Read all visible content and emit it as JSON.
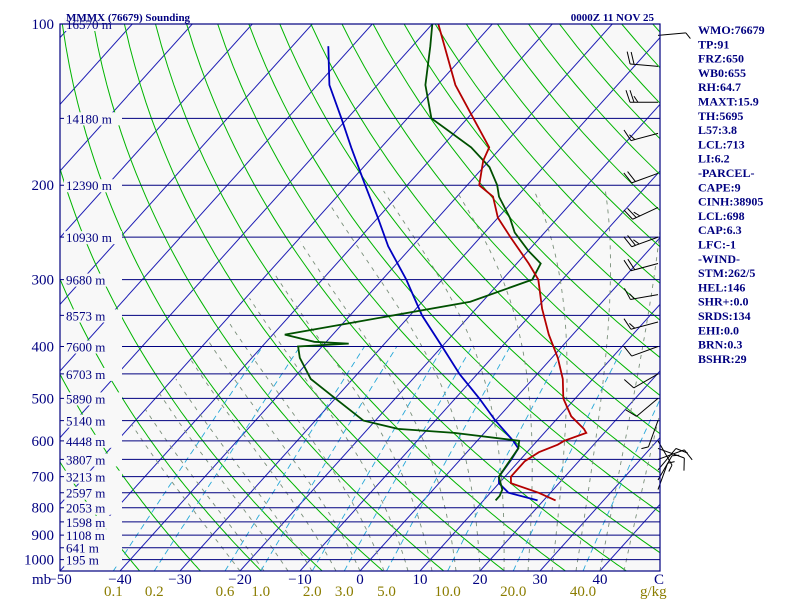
{
  "chart_data": {
    "type": "skew-t sounding",
    "title": "MMMX (76679) Sounding",
    "time": "0000Z 11 NOV 25",
    "x_axis_label": "mb",
    "temp_ticks": [
      -50,
      -40,
      -30,
      -20,
      -10,
      0,
      10,
      20,
      30,
      40
    ],
    "temp_tick_labels": [
      "−50",
      "−40",
      "−30",
      "−20",
      "−10",
      "0",
      "10",
      "20",
      "30",
      "40"
    ],
    "temp_unit": "C",
    "pressure_levels": [
      100,
      200,
      300,
      400,
      500,
      600,
      700,
      800,
      900,
      1000
    ],
    "mixing_ratio_labels": [
      "0.1",
      "0.2",
      "0.6",
      "1.0",
      "2.0",
      "3.0",
      "5.0",
      "10.0",
      "20.0",
      "40.0"
    ],
    "mixing_ratio_unit": "g/kg",
    "height_labels": [
      {
        "p": 100,
        "text": "16570 m"
      },
      {
        "p": 150,
        "text": "14180 m"
      },
      {
        "p": 200,
        "text": "12390 m"
      },
      {
        "p": 250,
        "text": "10930 m"
      },
      {
        "p": 300,
        "text": "9680 m"
      },
      {
        "p": 350,
        "text": "8573 m"
      },
      {
        "p": 400,
        "text": "7600 m"
      },
      {
        "p": 450,
        "text": "6703 m"
      },
      {
        "p": 500,
        "text": "5890 m"
      },
      {
        "p": 550,
        "text": "5140 m"
      },
      {
        "p": 600,
        "text": "4448 m"
      },
      {
        "p": 650,
        "text": "3807 m"
      },
      {
        "p": 700,
        "text": "3213 m"
      },
      {
        "p": 750,
        "text": "2597 m"
      },
      {
        "p": 800,
        "text": "2053 m"
      },
      {
        "p": 850,
        "text": "1598 m"
      },
      {
        "p": 900,
        "text": "1108 m"
      },
      {
        "p": 950,
        "text": "641 m"
      },
      {
        "p": 1000,
        "text": "195 m"
      }
    ],
    "temperature_profile": [
      [
        775,
        22
      ],
      [
        750,
        18
      ],
      [
        720,
        12
      ],
      [
        700,
        11
      ],
      [
        680,
        11
      ],
      [
        655,
        11
      ],
      [
        630,
        12
      ],
      [
        610,
        14
      ],
      [
        600,
        14.5
      ],
      [
        580,
        17
      ],
      [
        570,
        16
      ],
      [
        540,
        12
      ],
      [
        500,
        8
      ],
      [
        460,
        5
      ],
      [
        420,
        1
      ],
      [
        380,
        -4
      ],
      [
        340,
        -9
      ],
      [
        300,
        -14
      ],
      [
        280,
        -18
      ],
      [
        250,
        -25
      ],
      [
        230,
        -30
      ],
      [
        210,
        -34
      ],
      [
        200,
        -38
      ],
      [
        180,
        -41
      ],
      [
        170,
        -42
      ],
      [
        150,
        -49
      ],
      [
        130,
        -57
      ],
      [
        100,
        -69
      ]
    ],
    "dewpoint_profile": [
      [
        775,
        12
      ],
      [
        760,
        12
      ],
      [
        740,
        11.5
      ],
      [
        700,
        9
      ],
      [
        660,
        8.5
      ],
      [
        620,
        8
      ],
      [
        600,
        7
      ],
      [
        580,
        -5
      ],
      [
        570,
        -15
      ],
      [
        550,
        -22
      ],
      [
        500,
        -30
      ],
      [
        460,
        -37
      ],
      [
        420,
        -42
      ],
      [
        400,
        -44
      ],
      [
        395,
        -36
      ],
      [
        392,
        -42
      ],
      [
        380,
        -48
      ],
      [
        360,
        -38
      ],
      [
        330,
        -22
      ],
      [
        300,
        -15
      ],
      [
        280,
        -16
      ],
      [
        265,
        -20
      ],
      [
        245,
        -25
      ],
      [
        230,
        -28
      ],
      [
        210,
        -33
      ],
      [
        200,
        -35
      ],
      [
        185,
        -39
      ],
      [
        170,
        -45
      ],
      [
        150,
        -56
      ],
      [
        130,
        -62
      ],
      [
        110,
        -67
      ],
      [
        100,
        -70
      ]
    ],
    "parcel_profile": [
      [
        775,
        19
      ],
      [
        750,
        13
      ],
      [
        720,
        10
      ],
      [
        700,
        9
      ],
      [
        650,
        8.5
      ],
      [
        620,
        8
      ],
      [
        600,
        6
      ],
      [
        550,
        0
      ],
      [
        500,
        -6
      ],
      [
        450,
        -13
      ],
      [
        400,
        -20
      ],
      [
        350,
        -28
      ],
      [
        300,
        -36
      ],
      [
        260,
        -44
      ],
      [
        230,
        -50
      ],
      [
        200,
        -57
      ],
      [
        170,
        -65
      ],
      [
        150,
        -71
      ],
      [
        130,
        -78
      ],
      [
        110,
        -84
      ]
    ],
    "wind_barbs": [
      {
        "p": 105,
        "dir": 85,
        "spd": 5
      },
      {
        "p": 120,
        "dir": 275,
        "spd": 20
      },
      {
        "p": 140,
        "dir": 270,
        "spd": 25
      },
      {
        "p": 160,
        "dir": 255,
        "spd": 15
      },
      {
        "p": 190,
        "dir": 250,
        "spd": 20
      },
      {
        "p": 220,
        "dir": 245,
        "spd": 25
      },
      {
        "p": 250,
        "dir": 250,
        "spd": 25
      },
      {
        "p": 280,
        "dir": 255,
        "spd": 20
      },
      {
        "p": 320,
        "dir": 260,
        "spd": 15
      },
      {
        "p": 360,
        "dir": 255,
        "spd": 15
      },
      {
        "p": 400,
        "dir": 250,
        "spd": 10
      },
      {
        "p": 450,
        "dir": 240,
        "spd": 10
      },
      {
        "p": 500,
        "dir": 230,
        "spd": 10
      },
      {
        "p": 550,
        "dir": 200,
        "spd": 5
      },
      {
        "p": 600,
        "dir": 150,
        "spd": 5
      },
      {
        "p": 620,
        "dir": 110,
        "spd": 10
      },
      {
        "p": 650,
        "dir": 70,
        "spd": 10
      },
      {
        "p": 680,
        "dir": 40,
        "spd": 10
      },
      {
        "p": 710,
        "dir": 30,
        "spd": 5
      },
      {
        "p": 740,
        "dir": 20,
        "spd": 5
      }
    ]
  },
  "indices": [
    "WMO:76679",
    "TP:91",
    "FRZ:650",
    "WB0:655",
    "RH:64.7",
    "MAXT:15.9",
    "TH:5695",
    "L57:3.8",
    "LCL:713",
    "LI:6.2",
    "-PARCEL-",
    "CAPE:9",
    "CINH:38905",
    "LCL:698",
    "CAP:6.3",
    "LFC:-1",
    "-WIND-",
    "STM:262/5",
    "HEL:146",
    "SHR+:0.0",
    "SRDS:134",
    "EHI:0.0",
    "BRN:0.3",
    "BSHR:29"
  ],
  "colors": {
    "background": "#f8f8f8",
    "frame": "#000080",
    "isotherm": "#1e1eb4",
    "dry_adiabat": "#00b400",
    "moist_adiabat": "#7a8f7a",
    "mixing_ratio": "#28a8d8",
    "temperature": "#b40000",
    "dewpoint": "#005000",
    "parcel": "#0000c0",
    "barb": "#000000"
  }
}
